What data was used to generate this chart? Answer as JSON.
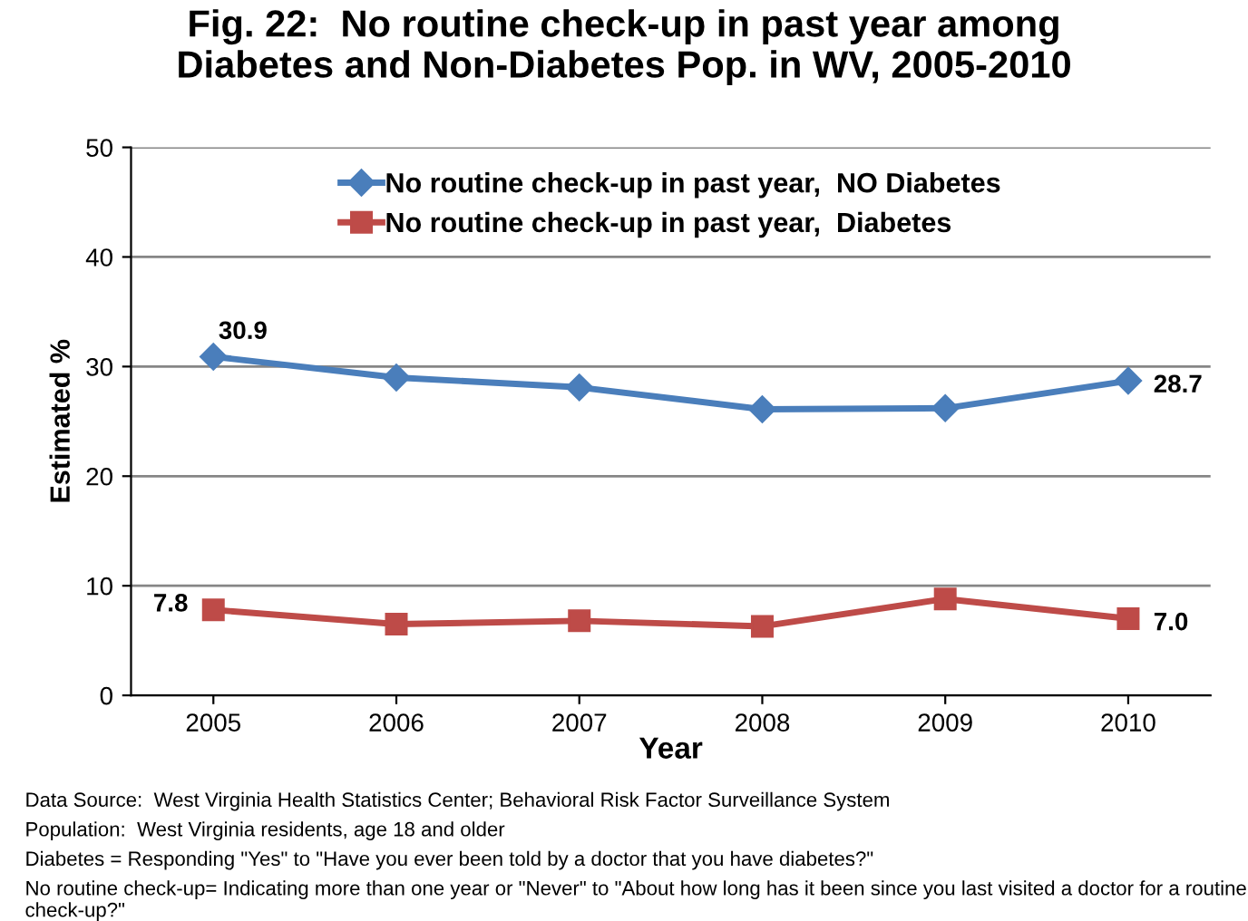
{
  "chart_data": {
    "type": "line",
    "title": "Fig. 22:  No routine check-up in past year among\nDiabetes and Non-Diabetes Pop. in WV, 2005-2010",
    "xlabel": "Year",
    "ylabel": "Estimated %",
    "categories": [
      "2005",
      "2006",
      "2007",
      "2008",
      "2009",
      "2010"
    ],
    "series": [
      {
        "name": "No routine check-up in past year,  NO Diabetes",
        "color": "#4a7ebb",
        "marker": "diamond",
        "values": [
          30.9,
          29.0,
          28.1,
          26.1,
          26.2,
          28.7
        ],
        "value_labels": [
          "30.9",
          null,
          null,
          null,
          null,
          "28.7"
        ]
      },
      {
        "name": "No routine check-up in past year,  Diabetes",
        "color": "#be4b48",
        "marker": "square",
        "values": [
          7.8,
          6.5,
          6.8,
          6.3,
          8.8,
          7.0
        ],
        "value_labels": [
          "7.8",
          null,
          null,
          null,
          null,
          "7.0"
        ]
      }
    ],
    "ylim": [
      0,
      50
    ],
    "yticks": [
      0,
      10,
      20,
      30,
      40,
      50
    ],
    "grid": "y",
    "legend": "top",
    "annotations": [
      "Data Source:  West Virginia Health Statistics Center; Behavioral Risk Factor Surveillance System",
      "Population:  West Virginia residents, age 18 and older",
      "Diabetes = Responding \"Yes\" to \"Have you ever been told by a doctor that you have diabetes?\"",
      "No routine check-up= Indicating more than one year or \"Never\" to \"About how long has it been since you last visited a doctor for a routine check-up?\""
    ]
  }
}
